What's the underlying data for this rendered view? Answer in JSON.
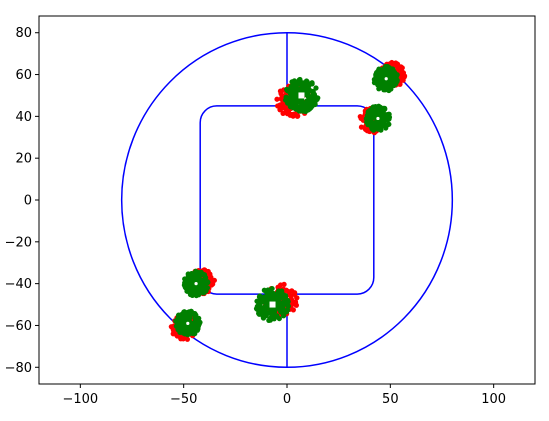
{
  "chart_data": {
    "type": "scatter",
    "title": "",
    "xlabel": "",
    "ylabel": "",
    "xlim": [
      -120,
      120
    ],
    "ylim": [
      -88,
      88
    ],
    "grid": false,
    "legend": "none",
    "xticks": [
      -100,
      -50,
      0,
      50,
      100
    ],
    "yticks": [
      -80,
      -60,
      -40,
      -20,
      0,
      20,
      40,
      60,
      80
    ],
    "xtick_labels": [
      "−100",
      "−50",
      "0",
      "50",
      "100"
    ],
    "ytick_labels": [
      "−80",
      "−60",
      "−40",
      "−20",
      "0",
      "20",
      "40",
      "60",
      "80"
    ],
    "colors": {
      "track": "#0000ff",
      "hit": "#ff0000",
      "cluster": "#008000",
      "center": "#ffffff"
    },
    "track": {
      "circle": {
        "center": [
          0,
          0
        ],
        "radius": 80
      },
      "rounded_square": {
        "x": [
          -42,
          42
        ],
        "y": [
          -45,
          45
        ],
        "corner_radius": 8
      },
      "vertical_connectors": [
        {
          "x": 0,
          "y": [
            45,
            80
          ]
        },
        {
          "x": 0,
          "y": [
            -80,
            -45
          ]
        }
      ]
    },
    "series": [
      {
        "marker": "square",
        "clusters": [
          {
            "x": 7,
            "y": 50,
            "red_x": 3,
            "red_y": 47,
            "radius": 8,
            "red_radius": 8
          },
          {
            "x": -7,
            "y": -50,
            "red_x": -3,
            "red_y": -48,
            "radius": 8,
            "red_radius": 8
          }
        ]
      },
      {
        "marker": "dot",
        "clusters": [
          {
            "x": 48,
            "y": 58,
            "red_x": 51,
            "red_y": 60,
            "radius": 6,
            "red_radius": 6
          },
          {
            "x": 44,
            "y": 39,
            "red_x": 41,
            "red_y": 38,
            "radius": 6,
            "red_radius": 6
          },
          {
            "x": -44,
            "y": -40,
            "red_x": -41,
            "red_y": -39,
            "radius": 6,
            "red_radius": 6
          },
          {
            "x": -48,
            "y": -59,
            "red_x": -50,
            "red_y": -61,
            "radius": 6,
            "red_radius": 6
          }
        ]
      }
    ]
  }
}
